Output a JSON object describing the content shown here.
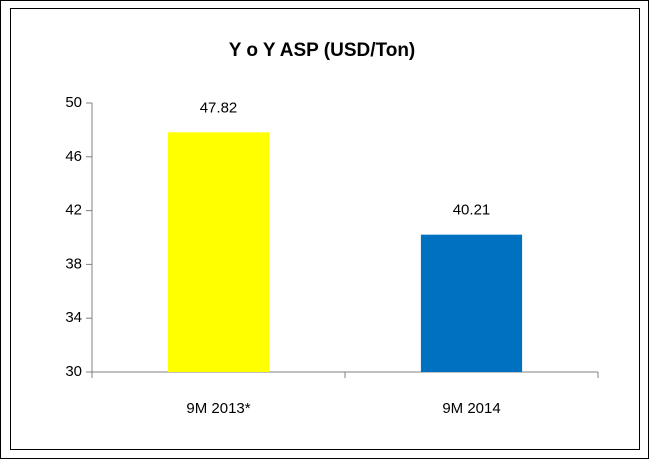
{
  "chart_data": {
    "type": "bar",
    "title": "Y o Y ASP (USD/Ton)",
    "categories": [
      "9M 2013*",
      "9M 2014"
    ],
    "values": [
      47.82,
      40.21
    ],
    "colors": [
      "#ffff00",
      "#0070c0"
    ],
    "ylim": [
      30,
      50
    ],
    "yticks": [
      30,
      34,
      38,
      42,
      46,
      50
    ],
    "grid": false
  }
}
